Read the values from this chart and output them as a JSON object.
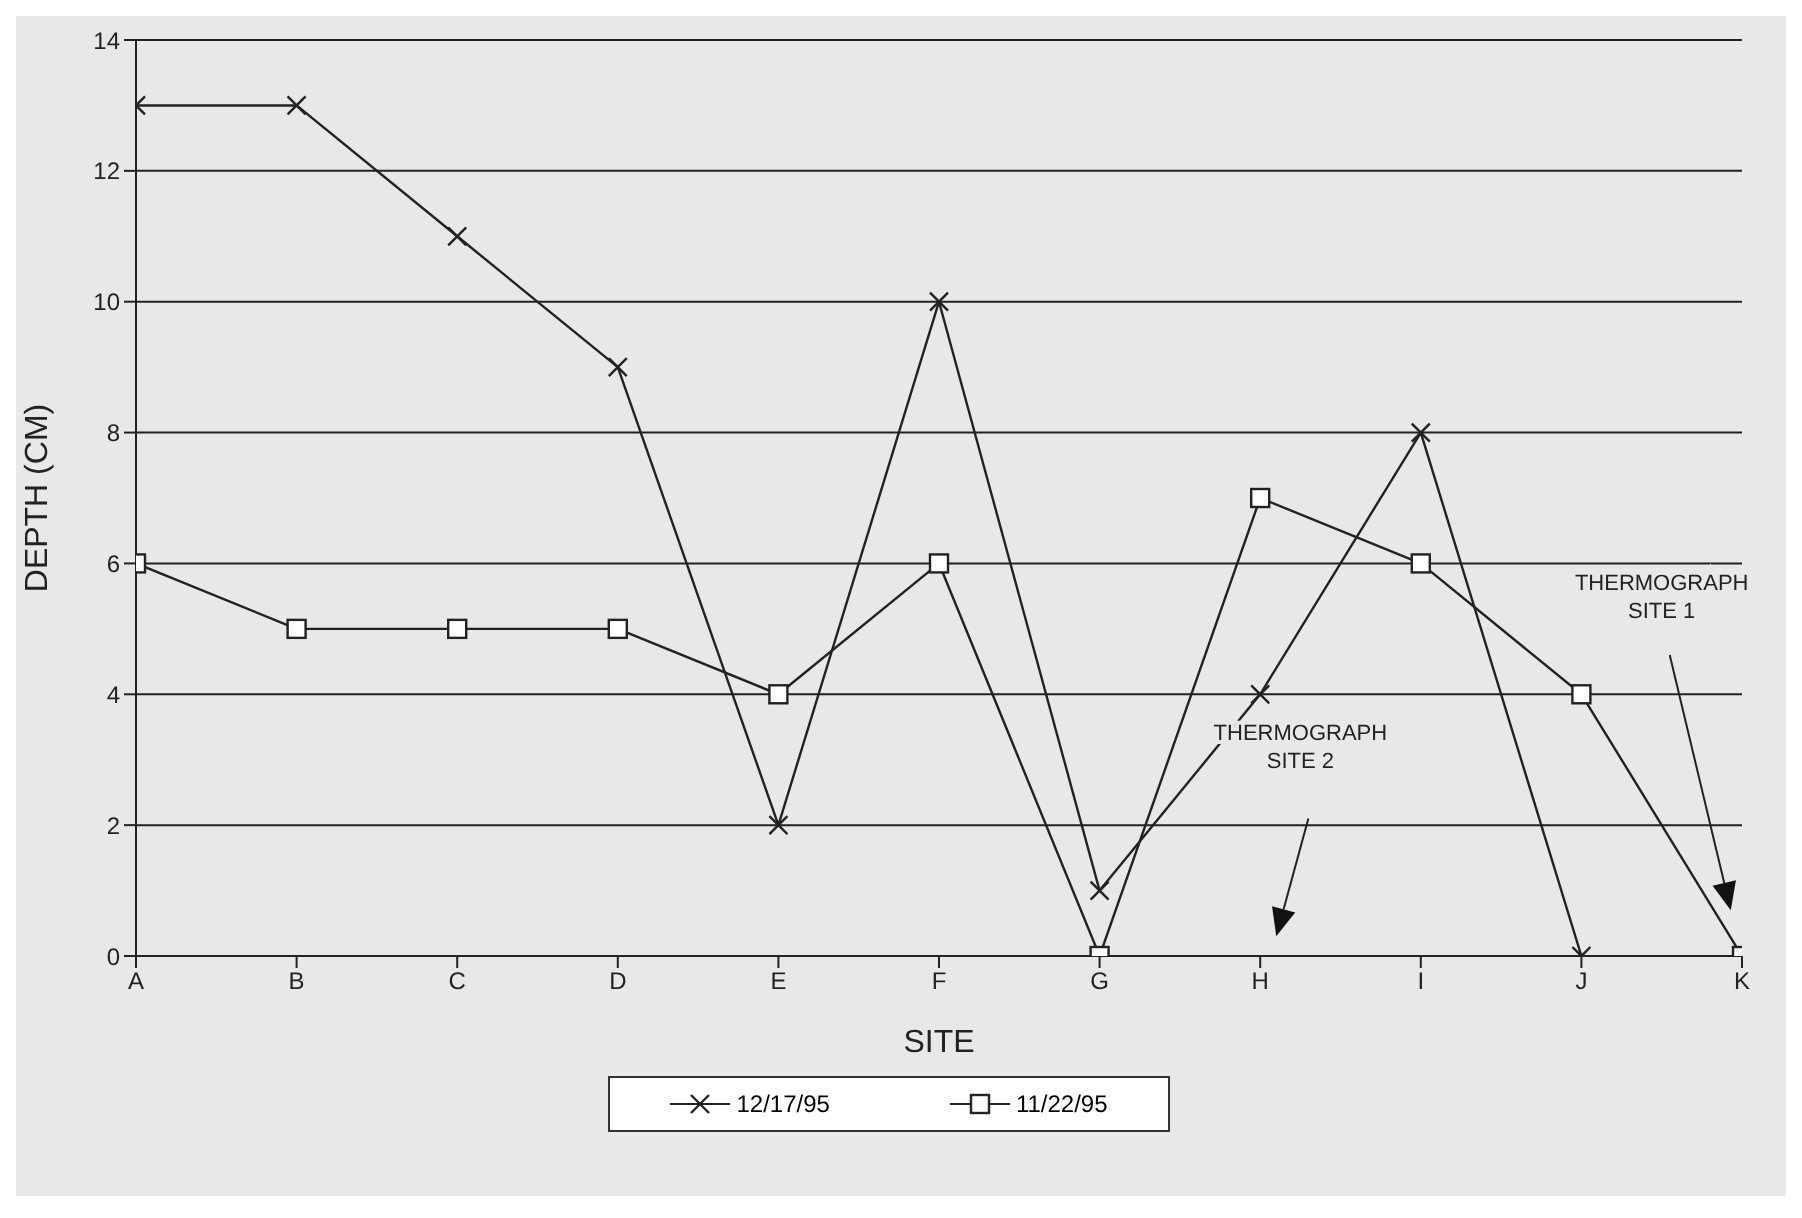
{
  "chart_data": {
    "type": "line",
    "xlabel": "SITE",
    "ylabel": "DEPTH (CM)",
    "categories": [
      "A",
      "B",
      "C",
      "D",
      "E",
      "F",
      "G",
      "H",
      "I",
      "J",
      "K"
    ],
    "series": [
      {
        "name": "12/17/95",
        "color": "#222222",
        "marker": "cross",
        "values": [
          13,
          13,
          11,
          9,
          2,
          10,
          1,
          4,
          8,
          0,
          null
        ]
      },
      {
        "name": "11/22/95",
        "color": "#222222",
        "marker": "square",
        "values": [
          6,
          5,
          5,
          5,
          4,
          6,
          0,
          7,
          6,
          4,
          0
        ]
      }
    ],
    "ylim": [
      0,
      14
    ],
    "yticks": [
      0,
      2,
      4,
      6,
      8,
      10,
      12,
      14
    ],
    "grid": "y",
    "legend": "bottom",
    "line_style": "solid",
    "annotations": [
      "THERMOGRAPH SITE 1",
      "THERMOGRAPH SITE 2"
    ]
  }
}
